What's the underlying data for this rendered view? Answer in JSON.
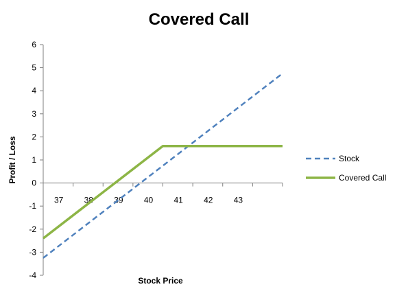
{
  "chart_data": {
    "type": "line",
    "title": "Covered Call",
    "xlabel": "Stock Price",
    "ylabel": "Profit / Loss",
    "xlim": [
      36,
      44
    ],
    "ylim": [
      -4,
      6
    ],
    "x_ticks": [
      37,
      38,
      39,
      40,
      41,
      42,
      43
    ],
    "y_ticks": [
      -4,
      -3,
      -2,
      -1,
      0,
      1,
      2,
      3,
      4,
      5,
      6
    ],
    "grid": false,
    "legend_position": "right",
    "series": [
      {
        "name": "Stock",
        "style": "dashed",
        "color": "#4F81BD",
        "x": [
          36,
          44
        ],
        "y": [
          -3.25,
          4.75
        ]
      },
      {
        "name": "Covered Call",
        "style": "solid",
        "color": "#8DB546",
        "x": [
          36,
          40,
          44
        ],
        "y": [
          -2.4,
          1.6,
          1.6
        ]
      }
    ]
  }
}
